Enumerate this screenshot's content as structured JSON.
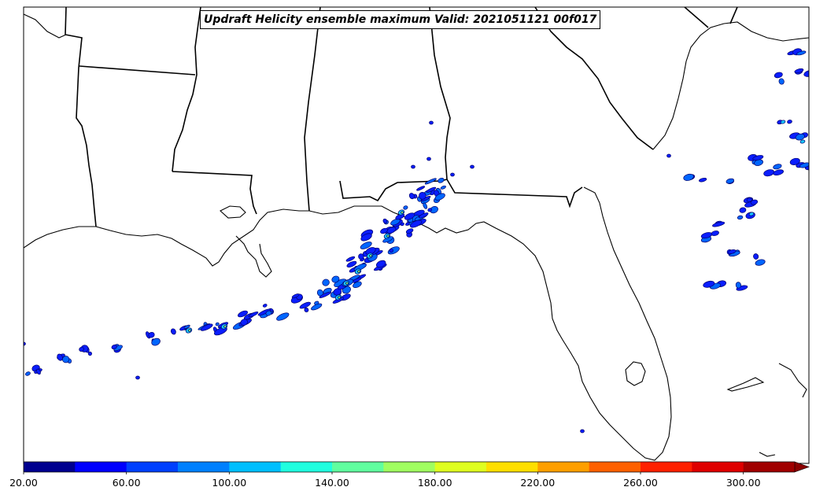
{
  "title": "Updraft Helicity ensemble maximum Valid: 2021051121 00f017",
  "colorbar": {
    "colors": [
      "#00008f",
      "#0000ff",
      "#0040ff",
      "#0080ff",
      "#00bfff",
      "#20ffdf",
      "#60ff9f",
      "#a0ff60",
      "#dfff20",
      "#ffdf00",
      "#ff9f00",
      "#ff6000",
      "#ff2000",
      "#df0000",
      "#a00000"
    ],
    "labels": [
      {
        "value": 20,
        "text": "20.00"
      },
      {
        "value": 60,
        "text": "60.00"
      },
      {
        "value": 100,
        "text": "100.00"
      },
      {
        "value": 140,
        "text": "140.00"
      },
      {
        "value": 180,
        "text": "180.00"
      },
      {
        "value": 220,
        "text": "220.00"
      },
      {
        "value": 260,
        "text": "260.00"
      },
      {
        "value": 300,
        "text": "300.00"
      }
    ],
    "extend": "max"
  }
}
